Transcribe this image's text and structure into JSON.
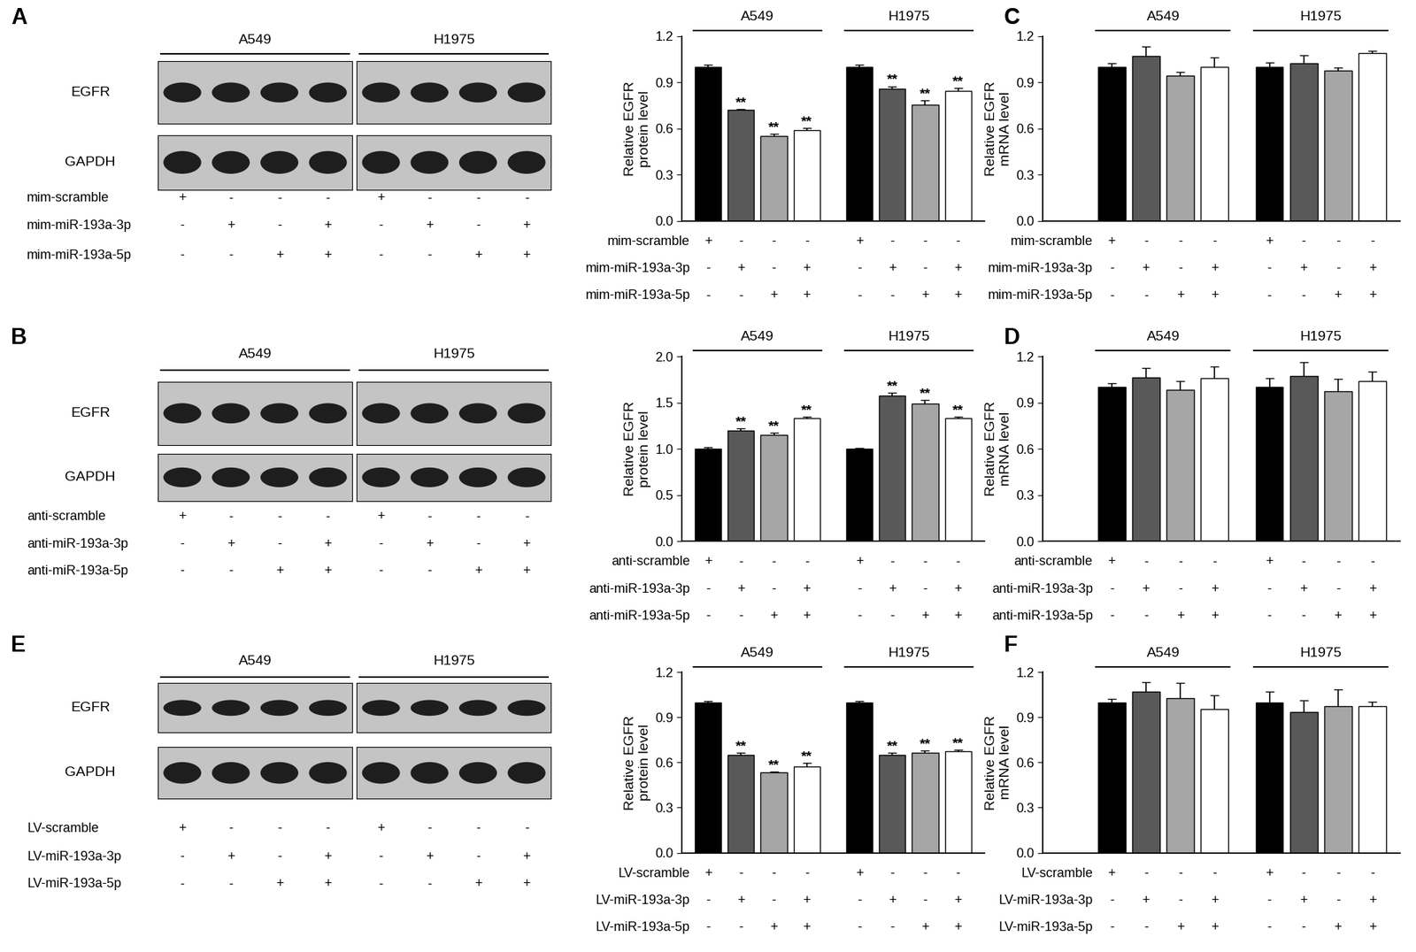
{
  "blots": [
    {
      "panel": "A",
      "cell_lines": [
        "A549",
        "H1975"
      ],
      "proteins": [
        "EGFR",
        "GAPDH"
      ],
      "conditions": [
        {
          "label": "mim-scramble",
          "signs": [
            "+",
            "-",
            "-",
            "-",
            "+",
            "-",
            "-",
            "-"
          ]
        },
        {
          "label": "mim-miR-193a-3p",
          "signs": [
            "-",
            "+",
            "-",
            "+",
            "-",
            "+",
            "-",
            "+"
          ]
        },
        {
          "label": "mim-miR-193a-5p",
          "signs": [
            "-",
            "-",
            "+",
            "+",
            "-",
            "-",
            "+",
            "+"
          ]
        }
      ]
    },
    {
      "panel": "B",
      "cell_lines": [
        "A549",
        "H1975"
      ],
      "proteins": [
        "EGFR",
        "GAPDH"
      ],
      "conditions": [
        {
          "label": "anti-scramble",
          "signs": [
            "+",
            "-",
            "-",
            "-",
            "+",
            "-",
            "-",
            "-"
          ]
        },
        {
          "label": "anti-miR-193a-3p",
          "signs": [
            "-",
            "+",
            "-",
            "+",
            "-",
            "+",
            "-",
            "+"
          ]
        },
        {
          "label": "anti-miR-193a-5p",
          "signs": [
            "-",
            "-",
            "+",
            "+",
            "-",
            "-",
            "+",
            "+"
          ]
        }
      ]
    },
    {
      "panel": "E",
      "cell_lines": [
        "A549",
        "H1975"
      ],
      "proteins": [
        "EGFR",
        "GAPDH"
      ],
      "conditions": [
        {
          "label": "LV-scramble",
          "signs": [
            "+",
            "-",
            "-",
            "-",
            "+",
            "-",
            "-",
            "-"
          ]
        },
        {
          "label": "LV-miR-193a-3p",
          "signs": [
            "-",
            "+",
            "-",
            "+",
            "-",
            "+",
            "-",
            "+"
          ]
        },
        {
          "label": "LV-miR-193a-5p",
          "signs": [
            "-",
            "-",
            "+",
            "+",
            "-",
            "-",
            "+",
            "+"
          ]
        }
      ]
    }
  ],
  "chart_data": [
    {
      "type": "bar",
      "groups": [
        "A549",
        "H1975"
      ],
      "ylabel": "Relative EGFR\nprotein level",
      "ylim": [
        0,
        1.2
      ],
      "yticks": [
        {
          "value": 0,
          "label": "0.0"
        },
        0.3,
        0.6,
        0.9,
        1.2
      ],
      "tick_labels": "y",
      "conditions": [
        {
          "label": "mim-scramble",
          "signs": [
            "+",
            "-",
            "-",
            "-",
            "+",
            "-",
            "-",
            "-"
          ]
        },
        {
          "label": "mim-miR-193a-3p",
          "signs": [
            "-",
            "+",
            "-",
            "+",
            "-",
            "+",
            "-",
            "+"
          ]
        },
        {
          "label": "mim-miR-193a-5p",
          "signs": [
            "-",
            "-",
            "+",
            "+",
            "-",
            "-",
            "+",
            "+"
          ]
        }
      ],
      "values": [
        1.0,
        0.72,
        0.55,
        0.59,
        1.0,
        0.86,
        0.755,
        0.845
      ],
      "errors": [
        0.015,
        0.006,
        0.015,
        0.015,
        0.015,
        0.015,
        0.03,
        0.02
      ],
      "significance": [
        null,
        "**",
        "**",
        "**",
        null,
        "**",
        "**",
        "**"
      ],
      "colors": [
        "#000000",
        "#595959",
        "#a6a6a6",
        "#ffffff",
        "#000000",
        "#595959",
        "#a6a6a6",
        "#ffffff"
      ]
    },
    {
      "type": "bar",
      "panel": "C",
      "groups": [
        "A549",
        "H1975"
      ],
      "ylabel": "Relative EGFR\nmRNA level",
      "ylim": [
        0,
        1.2
      ],
      "yticks": [
        {
          "value": 0,
          "label": "0.0"
        },
        0.3,
        0.6,
        0.9,
        1.2
      ],
      "tick_labels": "y",
      "conditions": [
        {
          "label": "mim-scramble",
          "signs": [
            "+",
            "-",
            "-",
            "-",
            "+",
            "-",
            "-",
            "-"
          ]
        },
        {
          "label": "mim-miR-193a-3p",
          "signs": [
            "-",
            "+",
            "-",
            "+",
            "-",
            "+",
            "-",
            "+"
          ]
        },
        {
          "label": "mim-miR-193a-5p",
          "signs": [
            "-",
            "-",
            "+",
            "+",
            "-",
            "-",
            "+",
            "+"
          ]
        }
      ],
      "values": [
        1.0,
        1.07,
        0.945,
        1.0,
        1.0,
        1.025,
        0.975,
        1.09
      ],
      "errors": [
        0.025,
        0.06,
        0.02,
        0.06,
        0.03,
        0.05,
        0.02,
        0.015
      ],
      "colors": [
        "#000000",
        "#595959",
        "#a6a6a6",
        "#ffffff",
        "#000000",
        "#595959",
        "#a6a6a6",
        "#ffffff"
      ]
    },
    {
      "type": "bar",
      "groups": [
        "A549",
        "H1975"
      ],
      "ylabel": "Relative EGFR\nprotein level",
      "ylim": [
        0,
        2.0
      ],
      "yticks": [
        {
          "value": 0,
          "label": "0.0"
        },
        0.5,
        {
          "value": 1,
          "label": "1.0"
        },
        1.5,
        {
          "value": 2,
          "label": "2.0"
        }
      ],
      "tick_labels": "y",
      "conditions": [
        {
          "label": "anti-scramble",
          "signs": [
            "+",
            "-",
            "-",
            "-",
            "+",
            "-",
            "-",
            "-"
          ]
        },
        {
          "label": "anti-miR-193a-3p",
          "signs": [
            "-",
            "+",
            "-",
            "+",
            "-",
            "+",
            "-",
            "+"
          ]
        },
        {
          "label": "anti-miR-193a-5p",
          "signs": [
            "-",
            "-",
            "+",
            "+",
            "-",
            "-",
            "+",
            "+"
          ]
        }
      ],
      "values": [
        1.0,
        1.2,
        1.15,
        1.33,
        1.0,
        1.58,
        1.49,
        1.33
      ],
      "errors": [
        0.02,
        0.025,
        0.025,
        0.015,
        0.01,
        0.025,
        0.04,
        0.015
      ],
      "significance": [
        null,
        "**",
        "**",
        "**",
        null,
        "**",
        "**",
        "**"
      ],
      "colors": [
        "#000000",
        "#595959",
        "#a6a6a6",
        "#ffffff",
        "#000000",
        "#595959",
        "#a6a6a6",
        "#ffffff"
      ]
    },
    {
      "type": "bar",
      "panel": "D",
      "groups": [
        "A549",
        "H1975"
      ],
      "ylabel": "Relative EGFR\nmRNA level",
      "ylim": [
        0,
        1.2
      ],
      "yticks": [
        {
          "value": 0,
          "label": "0.0"
        },
        0.3,
        0.6,
        0.9,
        1.2
      ],
      "tick_labels": "y",
      "conditions": [
        {
          "label": "anti-scramble",
          "signs": [
            "+",
            "-",
            "-",
            "-",
            "+",
            "-",
            "-",
            "-"
          ]
        },
        {
          "label": "anti-miR-193a-3p",
          "signs": [
            "-",
            "+",
            "-",
            "+",
            "-",
            "+",
            "-",
            "+"
          ]
        },
        {
          "label": "anti-miR-193a-5p",
          "signs": [
            "-",
            "-",
            "+",
            "+",
            "-",
            "-",
            "+",
            "+"
          ]
        }
      ],
      "values": [
        1.0,
        1.065,
        0.985,
        1.06,
        1.0,
        1.075,
        0.975,
        1.04
      ],
      "errors": [
        0.025,
        0.06,
        0.055,
        0.075,
        0.06,
        0.09,
        0.08,
        0.06
      ],
      "colors": [
        "#000000",
        "#595959",
        "#a6a6a6",
        "#ffffff",
        "#000000",
        "#595959",
        "#a6a6a6",
        "#ffffff"
      ]
    },
    {
      "type": "bar",
      "groups": [
        "A549",
        "H1975"
      ],
      "ylabel": "Relative EGFR\nprotein level",
      "ylim": [
        0,
        1.2
      ],
      "yticks": [
        {
          "value": 0,
          "label": "0.0"
        },
        0.3,
        0.6,
        0.9,
        1.2
      ],
      "tick_labels": "y",
      "conditions": [
        {
          "label": "LV-scramble",
          "signs": [
            "+",
            "-",
            "-",
            "-",
            "+",
            "-",
            "-",
            "-"
          ]
        },
        {
          "label": "LV-miR-193a-3p",
          "signs": [
            "-",
            "+",
            "-",
            "+",
            "-",
            "+",
            "-",
            "+"
          ]
        },
        {
          "label": "LV-miR-193a-5p",
          "signs": [
            "-",
            "-",
            "+",
            "+",
            "-",
            "-",
            "+",
            "+"
          ]
        }
      ],
      "values": [
        1.0,
        0.65,
        0.535,
        0.575,
        1.0,
        0.65,
        0.665,
        0.675
      ],
      "errors": [
        0.01,
        0.015,
        0.006,
        0.02,
        0.01,
        0.015,
        0.015,
        0.01
      ],
      "significance": [
        null,
        "**",
        "**",
        "**",
        null,
        "**",
        "**",
        "**"
      ],
      "colors": [
        "#000000",
        "#595959",
        "#a6a6a6",
        "#ffffff",
        "#000000",
        "#595959",
        "#a6a6a6",
        "#ffffff"
      ]
    },
    {
      "type": "bar",
      "panel": "F",
      "groups": [
        "A549",
        "H1975"
      ],
      "ylabel": "Relative EGFR\nmRNA level",
      "ylim": [
        0,
        1.2
      ],
      "yticks": [
        {
          "value": 0,
          "label": "0.0"
        },
        0.3,
        0.6,
        0.9,
        1.2
      ],
      "tick_labels": "y",
      "conditions": [
        {
          "label": "LV-scramble",
          "signs": [
            "+",
            "-",
            "-",
            "-",
            "+",
            "-",
            "-",
            "-"
          ]
        },
        {
          "label": "LV-miR-193a-3p",
          "signs": [
            "-",
            "+",
            "-",
            "+",
            "-",
            "+",
            "-",
            "+"
          ]
        },
        {
          "label": "LV-miR-193a-5p",
          "signs": [
            "-",
            "-",
            "+",
            "+",
            "-",
            "-",
            "+",
            "+"
          ]
        }
      ],
      "values": [
        1.0,
        1.07,
        1.03,
        0.955,
        1.0,
        0.935,
        0.975,
        0.975
      ],
      "errors": [
        0.025,
        0.065,
        0.1,
        0.09,
        0.07,
        0.08,
        0.11,
        0.03
      ],
      "colors": [
        "#000000",
        "#595959",
        "#a6a6a6",
        "#ffffff",
        "#000000",
        "#595959",
        "#a6a6a6",
        "#ffffff"
      ]
    }
  ]
}
